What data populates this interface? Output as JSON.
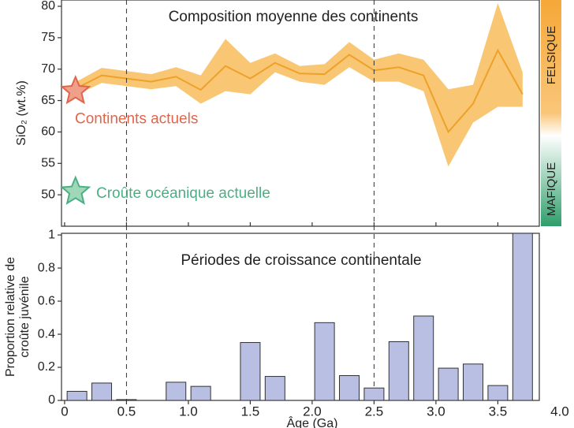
{
  "chart_data": [
    {
      "type": "line",
      "title": "Composition moyenne des continents",
      "ylabel": "SiO₂ (wt.%)",
      "x": [
        0.05,
        0.3,
        0.5,
        0.7,
        0.9,
        1.1,
        1.3,
        1.5,
        1.7,
        1.9,
        2.1,
        2.3,
        2.5,
        2.7,
        2.9,
        3.1,
        3.3,
        3.5,
        3.7
      ],
      "series": [
        {
          "color": "#eea12a",
          "band_color": "#f9c673",
          "values": [
            66.5,
            69,
            68.5,
            68,
            68.8,
            66.7,
            70.5,
            68.5,
            71,
            69.3,
            69.2,
            72.3,
            69.8,
            70.3,
            69,
            60,
            64.5,
            73,
            66
          ],
          "lower": [
            65.5,
            67.8,
            67.3,
            66.8,
            67.3,
            64.5,
            66.5,
            66,
            69.5,
            68,
            67.5,
            70.3,
            68,
            68,
            66.5,
            54.5,
            61.5,
            64,
            64
          ],
          "upper": [
            67.5,
            70.2,
            69.7,
            69.2,
            70.3,
            69,
            74.8,
            71,
            72.5,
            70.5,
            70.8,
            74.3,
            71.5,
            72.5,
            71.5,
            66.8,
            67.5,
            80.5,
            69.5
          ]
        }
      ],
      "points": [
        {
          "label": "Continents actuels",
          "x": 0.05,
          "y": 66.5,
          "color": "#e0654a",
          "fill": "#f0a08a"
        },
        {
          "label": "Croûte océanique actuelle",
          "x": 0.05,
          "y": 50.5,
          "color": "#4caf84",
          "fill": "#9fd8b9"
        }
      ],
      "xlim": [
        -0.025,
        3.835
      ],
      "ylim": [
        45,
        81
      ],
      "yticks": [
        50,
        55,
        60,
        65,
        70,
        75,
        80
      ],
      "vlines": [
        0.5,
        2.5
      ],
      "scale_labels": [
        "FELSIQUE",
        "MAFIQUE"
      ]
    },
    {
      "type": "bar",
      "title": "Périodes de croissance continentale",
      "ylabel": [
        "Proportion relative de",
        "croûte juvénile"
      ],
      "xlabel": "Âge (Ga)",
      "color": "#b9bfe2",
      "x": [
        0.1,
        0.3,
        0.5,
        0.9,
        1.1,
        1.5,
        1.7,
        2.1,
        2.3,
        2.5,
        2.7,
        2.9,
        3.1,
        3.3,
        3.5,
        3.7
      ],
      "values": [
        0.055,
        0.105,
        0.005,
        0.11,
        0.085,
        0.35,
        0.145,
        0.47,
        0.15,
        0.075,
        0.355,
        0.51,
        0.195,
        0.22,
        0.09,
        1.01
      ],
      "xlim": [
        -0.025,
        3.835
      ],
      "ylim": [
        0,
        1.01
      ],
      "xticks": [
        0,
        0.5,
        {
          "value": 1,
          "label": "1.0"
        },
        1.5,
        {
          "value": 2,
          "label": "2.0"
        },
        2.5,
        {
          "value": 3,
          "label": "3.0"
        },
        3.5,
        {
          "value": 4,
          "label": "4.0"
        }
      ],
      "yticks": [
        0,
        0.2,
        0.4,
        0.6,
        0.8,
        1
      ]
    }
  ]
}
